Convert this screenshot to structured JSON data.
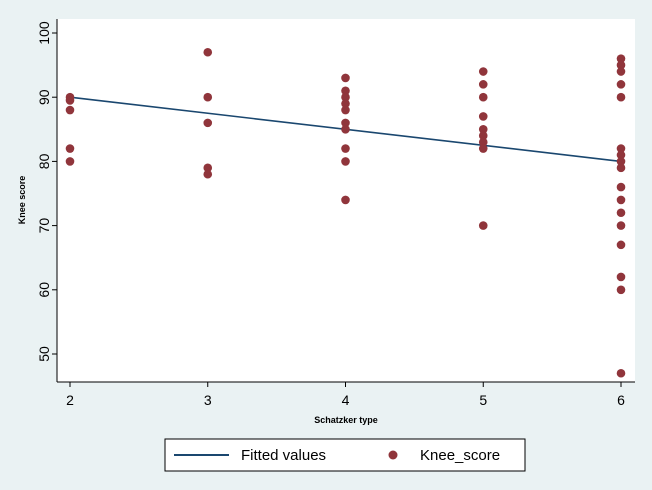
{
  "chart_data": {
    "type": "scatter",
    "title": "",
    "xlabel": "Schatzker type",
    "ylabel": "Knee score",
    "xlim": [
      2,
      6
    ],
    "ylim": [
      45,
      100
    ],
    "x_ticks": [
      2,
      3,
      4,
      5,
      6
    ],
    "y_ticks": [
      50,
      60,
      70,
      80,
      90,
      100
    ],
    "grid": false,
    "legend_position": "bottom",
    "series": [
      {
        "name": "Fitted values",
        "kind": "line",
        "color": "#1a476f",
        "points": [
          [
            2,
            90
          ],
          [
            6,
            80
          ]
        ]
      },
      {
        "name": "Knee_score",
        "kind": "scatter",
        "color": "#90353b",
        "points": [
          [
            2,
            90
          ],
          [
            2,
            89.5
          ],
          [
            2,
            88
          ],
          [
            2,
            82
          ],
          [
            2,
            80
          ],
          [
            3,
            97
          ],
          [
            3,
            90
          ],
          [
            3,
            86
          ],
          [
            3,
            79
          ],
          [
            3,
            78
          ],
          [
            4,
            93
          ],
          [
            4,
            91
          ],
          [
            4,
            90
          ],
          [
            4,
            89
          ],
          [
            4,
            88
          ],
          [
            4,
            86
          ],
          [
            4,
            85
          ],
          [
            4,
            82
          ],
          [
            4,
            80
          ],
          [
            4,
            74
          ],
          [
            5,
            94
          ],
          [
            5,
            92
          ],
          [
            5,
            90
          ],
          [
            5,
            87
          ],
          [
            5,
            85
          ],
          [
            5,
            84
          ],
          [
            5,
            83
          ],
          [
            5,
            82
          ],
          [
            5,
            70
          ],
          [
            6,
            96
          ],
          [
            6,
            95
          ],
          [
            6,
            94
          ],
          [
            6,
            92
          ],
          [
            6,
            90
          ],
          [
            6,
            82
          ],
          [
            6,
            81
          ],
          [
            6,
            80
          ],
          [
            6,
            79
          ],
          [
            6,
            76
          ],
          [
            6,
            74
          ],
          [
            6,
            72
          ],
          [
            6,
            70
          ],
          [
            6,
            67
          ],
          [
            6,
            62
          ],
          [
            6,
            60
          ],
          [
            6,
            47
          ]
        ]
      }
    ]
  },
  "colors": {
    "outer_background": "#eaf2f3",
    "plot_background": "#ffffff",
    "fitted_line": "#1a476f",
    "marker": "#90353b"
  }
}
